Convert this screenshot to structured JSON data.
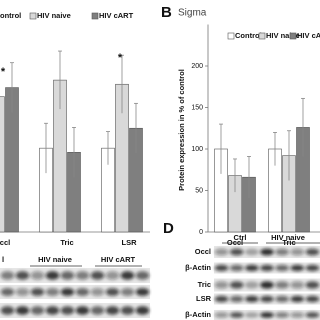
{
  "chart_data": [
    {
      "type": "bar",
      "categories": [
        "ccl",
        "Tric",
        "LSR"
      ],
      "series": [
        {
          "name": "ontrol",
          "color": "#ffffff",
          "values": [
            null,
            101,
            101
          ],
          "errors": [
            null,
            30,
            20
          ]
        },
        {
          "name": "HIV naive",
          "color": "#d9d9d9",
          "values": [
            163,
            183,
            178
          ],
          "errors": [
            15,
            35,
            35
          ]
        },
        {
          "name": "HIV cART",
          "color": "#7f7f7f",
          "values": [
            174,
            96,
            125
          ],
          "errors": [
            30,
            30,
            30
          ]
        }
      ],
      "annotations": [
        "*",
        "*"
      ],
      "ylim": [
        0,
        250
      ]
    },
    {
      "type": "bar",
      "panel": "B",
      "title": "Sigma",
      "y_label": "Protein expression in % of control",
      "categories": [
        "Occl",
        "Tric"
      ],
      "series": [
        {
          "name": "Control",
          "color": "#ffffff",
          "values": [
            100,
            100
          ],
          "errors": [
            30,
            20
          ]
        },
        {
          "name": "HIV naive",
          "color": "#d9d9d9",
          "values": [
            68,
            92
          ],
          "errors": [
            20,
            30
          ]
        },
        {
          "name": "HIV cART",
          "color": "#7f7f7f",
          "values": [
            66,
            126
          ],
          "errors": [
            25,
            35
          ]
        }
      ],
      "ylim": [
        0,
        250
      ],
      "yticks": [
        0,
        50,
        100,
        150,
        200
      ]
    }
  ],
  "blot_c": {
    "header": [
      "l",
      "HIV naive",
      "HIV cART"
    ]
  },
  "blot_d": {
    "panel": "D",
    "header": [
      "Ctrl",
      "HIV naive"
    ],
    "rows": [
      "Occl",
      "β-Actin",
      "Tric",
      "LSR",
      "β-Actin"
    ]
  }
}
